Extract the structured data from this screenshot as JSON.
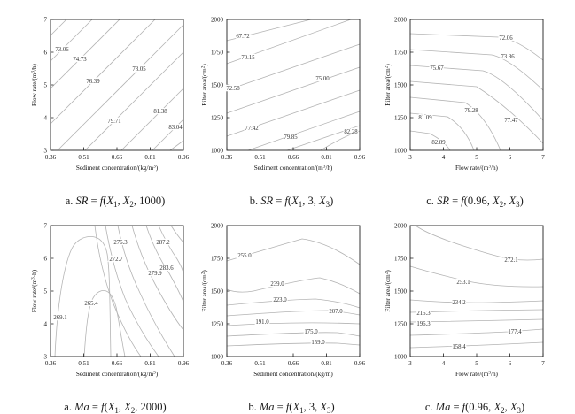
{
  "colors": {
    "axis": "#1f1f1f",
    "contour_line": "#b4b4b4",
    "text": "#111111"
  },
  "panels": [
    {
      "id": "sr-a",
      "x_ticks": [
        "0.36",
        "0.51",
        "0.66",
        "0.81",
        "0.96"
      ],
      "y_ticks": [
        "3",
        "4",
        "5",
        "6",
        "7"
      ],
      "xlabel": {
        "pre": "Sediment concentration/(kg/m",
        "sup": "3",
        "post": ")"
      },
      "ylabel": {
        "pre": "Flow rate/(m",
        "sup": "3",
        "post": "/h)"
      },
      "contours": [
        "73.06",
        "74.73",
        "76.39",
        "78.05",
        "79.71",
        "81.38",
        "83.04"
      ],
      "caption_parts": [
        {
          "text": "a. ",
          "cls": "rm"
        },
        {
          "text": "SR",
          "cls": "it"
        },
        {
          "text": " = ",
          "cls": "rm"
        },
        {
          "text": "f",
          "cls": "it"
        },
        {
          "text": "(",
          "cls": "rm"
        },
        {
          "text": "X",
          "cls": "it"
        },
        {
          "text": "1",
          "cls": "sub"
        },
        {
          "text": ", ",
          "cls": "rm"
        },
        {
          "text": "X",
          "cls": "it"
        },
        {
          "text": "2",
          "cls": "sub"
        },
        {
          "text": ", 1000)",
          "cls": "rm"
        }
      ]
    },
    {
      "id": "sr-b",
      "x_ticks": [
        "0.36",
        "0.51",
        "0.66",
        "0.81",
        "0.96"
      ],
      "y_ticks": [
        "1000",
        "1250",
        "1500",
        "1750",
        "2000"
      ],
      "xlabel": {
        "pre": "Sediment concentration/(m",
        "sup": "3",
        "post": "/h)"
      },
      "ylabel": {
        "pre": "Filter area/(cm",
        "sup": "2",
        "post": ")"
      },
      "contours": [
        "67.72",
        "70.15",
        "72.58",
        "75.00",
        "77.42",
        "79.85",
        "82.28"
      ],
      "caption_parts": [
        {
          "text": "b. ",
          "cls": "rm"
        },
        {
          "text": "SR",
          "cls": "it"
        },
        {
          "text": " = ",
          "cls": "rm"
        },
        {
          "text": "f",
          "cls": "it"
        },
        {
          "text": "(",
          "cls": "rm"
        },
        {
          "text": "X",
          "cls": "it"
        },
        {
          "text": "1",
          "cls": "sub"
        },
        {
          "text": ", 3, ",
          "cls": "rm"
        },
        {
          "text": "X",
          "cls": "it"
        },
        {
          "text": "3",
          "cls": "sub"
        },
        {
          "text": ")",
          "cls": "rm"
        }
      ]
    },
    {
      "id": "sr-c",
      "x_ticks": [
        "3",
        "4",
        "5",
        "6",
        "7"
      ],
      "y_ticks": [
        "1000",
        "1250",
        "1500",
        "1750",
        "2000"
      ],
      "xlabel": {
        "pre": "Flow rate/(m",
        "sup": "3",
        "post": "/h)"
      },
      "ylabel": {
        "pre": "Filter area/(cm",
        "sup": "2",
        "post": ")"
      },
      "contours": [
        "72.06",
        "73.86",
        "75.67",
        "77.47",
        "79.28",
        "81.09",
        "82.89"
      ],
      "caption_parts": [
        {
          "text": "c. ",
          "cls": "rm"
        },
        {
          "text": "SR",
          "cls": "it"
        },
        {
          "text": " = ",
          "cls": "rm"
        },
        {
          "text": "f",
          "cls": "it"
        },
        {
          "text": "(0.96, ",
          "cls": "rm"
        },
        {
          "text": "X",
          "cls": "it"
        },
        {
          "text": "2",
          "cls": "sub"
        },
        {
          "text": ", ",
          "cls": "rm"
        },
        {
          "text": "X",
          "cls": "it"
        },
        {
          "text": "3",
          "cls": "sub"
        },
        {
          "text": ")",
          "cls": "rm"
        }
      ]
    },
    {
      "id": "ma-a",
      "x_ticks": [
        "0.36",
        "0.51",
        "0.66",
        "0.81",
        "0.96"
      ],
      "y_ticks": [
        "3",
        "4",
        "5",
        "6",
        "7"
      ],
      "xlabel": {
        "pre": "Sediment concentration/(kg/m",
        "sup": "3",
        "post": ")"
      },
      "ylabel": {
        "pre": "Flow rate/(m",
        "sup": "3",
        "post": "·h)"
      },
      "contours": [
        "269.1",
        "265.4",
        "272.7",
        "276.3",
        "279.9",
        "283.6",
        "287.2"
      ],
      "caption_parts": [
        {
          "text": "a. ",
          "cls": "rm"
        },
        {
          "text": "Ma",
          "cls": "it"
        },
        {
          "text": " = ",
          "cls": "rm"
        },
        {
          "text": "f",
          "cls": "it"
        },
        {
          "text": "(",
          "cls": "rm"
        },
        {
          "text": "X",
          "cls": "it"
        },
        {
          "text": "1",
          "cls": "sub"
        },
        {
          "text": ", ",
          "cls": "rm"
        },
        {
          "text": "X",
          "cls": "it"
        },
        {
          "text": "2",
          "cls": "sub"
        },
        {
          "text": ", 2000)",
          "cls": "rm"
        }
      ]
    },
    {
      "id": "ma-b",
      "x_ticks": [
        "0.36",
        "0.51",
        "0.66",
        "0.81",
        "0.96"
      ],
      "y_ticks": [
        "1000",
        "1250",
        "1500",
        "1750",
        "2000"
      ],
      "xlabel": {
        "pre": "Sediment concentration/(kg/m)",
        "sup": "",
        "post": ""
      },
      "ylabel": {
        "pre": "Filter area/(cm",
        "sup": "2",
        "post": ")"
      },
      "contours": [
        "255.0",
        "239.0",
        "223.0",
        "207.0",
        "191.0",
        "175.0",
        "159.0"
      ],
      "caption_parts": [
        {
          "text": "b. ",
          "cls": "rm"
        },
        {
          "text": "Ma",
          "cls": "it"
        },
        {
          "text": " = ",
          "cls": "rm"
        },
        {
          "text": "f",
          "cls": "it"
        },
        {
          "text": "(",
          "cls": "rm"
        },
        {
          "text": "X",
          "cls": "it"
        },
        {
          "text": "1",
          "cls": "sub"
        },
        {
          "text": ", 3, ",
          "cls": "rm"
        },
        {
          "text": "X",
          "cls": "it"
        },
        {
          "text": "3",
          "cls": "sub"
        },
        {
          "text": ")",
          "cls": "rm"
        }
      ]
    },
    {
      "id": "ma-c",
      "x_ticks": [
        "3",
        "4",
        "5",
        "6",
        "7"
      ],
      "y_ticks": [
        "1000",
        "1250",
        "1500",
        "1750",
        "2000"
      ],
      "xlabel": {
        "pre": "Flow rate/(m",
        "sup": "3",
        "post": "/h)"
      },
      "ylabel": {
        "pre": "Filter area/(cm",
        "sup": "2",
        "post": ")"
      },
      "contours": [
        "272.1",
        "253.1",
        "234.2",
        "215.3",
        "196.3",
        "177.4",
        "158.4"
      ],
      "caption_parts": [
        {
          "text": "c. ",
          "cls": "rm"
        },
        {
          "text": "Ma",
          "cls": "it"
        },
        {
          "text": " = ",
          "cls": "rm"
        },
        {
          "text": "f",
          "cls": "it"
        },
        {
          "text": "(0.96, ",
          "cls": "rm"
        },
        {
          "text": "X",
          "cls": "it"
        },
        {
          "text": "2",
          "cls": "sub"
        },
        {
          "text": ", ",
          "cls": "rm"
        },
        {
          "text": "X",
          "cls": "it"
        },
        {
          "text": "3",
          "cls": "sub"
        },
        {
          "text": ")",
          "cls": "rm"
        }
      ]
    }
  ],
  "chart_data": [
    {
      "type": "contour",
      "title": "a. SR = f(X1, X2, 1000)",
      "xlabel": "Sediment concentration/(kg/m3)",
      "ylabel": "Flow rate/(m3/h)",
      "xlim": [
        0.36,
        0.96
      ],
      "ylim": [
        3,
        7
      ],
      "x_ticks": [
        0.36,
        0.51,
        0.66,
        0.81,
        0.96
      ],
      "y_ticks": [
        3,
        4,
        5,
        6,
        7
      ],
      "contour_levels": [
        73.06,
        74.73,
        76.39,
        78.05,
        79.71,
        81.38,
        83.04
      ],
      "shape": "parallel diagonal contours rising left-to-right; SR increases toward high sediment concentration and low flow rate (max 83.04 at bottom-right)"
    },
    {
      "type": "contour",
      "title": "b. SR = f(X1, 3, X3)",
      "xlabel": "Sediment concentration/(m3/h)",
      "ylabel": "Filter area/(cm2)",
      "xlim": [
        0.36,
        0.96
      ],
      "ylim": [
        1000,
        2000
      ],
      "x_ticks": [
        0.36,
        0.51,
        0.66,
        0.81,
        0.96
      ],
      "y_ticks": [
        1000,
        1250,
        1500,
        1750,
        2000
      ],
      "contour_levels": [
        67.72,
        70.15,
        72.58,
        75.0,
        77.42,
        79.85,
        82.28
      ],
      "shape": "shallow diagonal contours; SR increases toward high sediment concentration and low filter area (max 82.28 at bottom-right)"
    },
    {
      "type": "contour",
      "title": "c. SR = f(0.96, X2, X3)",
      "xlabel": "Flow rate/(m3/h)",
      "ylabel": "Filter area/(cm2)",
      "xlim": [
        3,
        7
      ],
      "ylim": [
        1000,
        2000
      ],
      "x_ticks": [
        3,
        4,
        5,
        6,
        7
      ],
      "y_ticks": [
        1000,
        1250,
        1500,
        1750,
        2000
      ],
      "contour_levels": [
        72.06,
        73.86,
        75.67,
        77.47,
        79.28,
        81.09,
        82.89
      ],
      "shape": "contours nearly horizontal at left, bending downward at higher flow rate; SR increases toward low filter area (max 82.89 at bottom-left)"
    },
    {
      "type": "contour",
      "title": "a. Ma = f(X1, X2, 2000)",
      "xlabel": "Sediment concentration/(kg/m3)",
      "ylabel": "Flow rate/(m3·h)",
      "xlim": [
        0.36,
        0.96
      ],
      "ylim": [
        3,
        7
      ],
      "x_ticks": [
        0.36,
        0.51,
        0.66,
        0.81,
        0.96
      ],
      "y_ticks": [
        3,
        4,
        5,
        6,
        7
      ],
      "contour_levels": [
        265.4,
        269.1,
        272.7,
        276.3,
        279.9,
        283.6,
        287.2
      ],
      "shape": "two arch-shaped contours (269.1, 265.4) on the left with a valley between; fan of curves in upper-right increasing to 287.2 toward top-right corner"
    },
    {
      "type": "contour",
      "title": "b. Ma = f(X1, 3, X3)",
      "xlabel": "Sediment concentration/(kg/m)",
      "ylabel": "Filter area/(cm2)",
      "xlim": [
        0.36,
        0.96
      ],
      "ylim": [
        1000,
        2000
      ],
      "x_ticks": [
        0.36,
        0.51,
        0.66,
        0.81,
        0.96
      ],
      "y_ticks": [
        1000,
        1250,
        1500,
        1750,
        2000
      ],
      "contour_levels": [
        159.0,
        175.0,
        191.0,
        207.0,
        223.0,
        239.0,
        255.0
      ],
      "shape": "near-horizontal contours with a gentle hump around x=0.7; Ma increases with filter area (255.0 near top, 159.0 near bottom)"
    },
    {
      "type": "contour",
      "title": "c. Ma = f(0.96, X2, X3)",
      "xlabel": "Flow rate/(m3/h)",
      "ylabel": "Filter area/(cm2)",
      "xlim": [
        3,
        7
      ],
      "ylim": [
        1000,
        2000
      ],
      "x_ticks": [
        3,
        4,
        5,
        6,
        7
      ],
      "y_ticks": [
        1000,
        1250,
        1500,
        1750,
        2000
      ],
      "contour_levels": [
        158.4,
        177.4,
        196.3,
        215.3,
        234.2,
        253.1,
        272.1
      ],
      "shape": "near-horizontal contours, upper two sloping down to the right; Ma increases with filter area (272.1 near top, 158.4 near bottom)"
    }
  ]
}
